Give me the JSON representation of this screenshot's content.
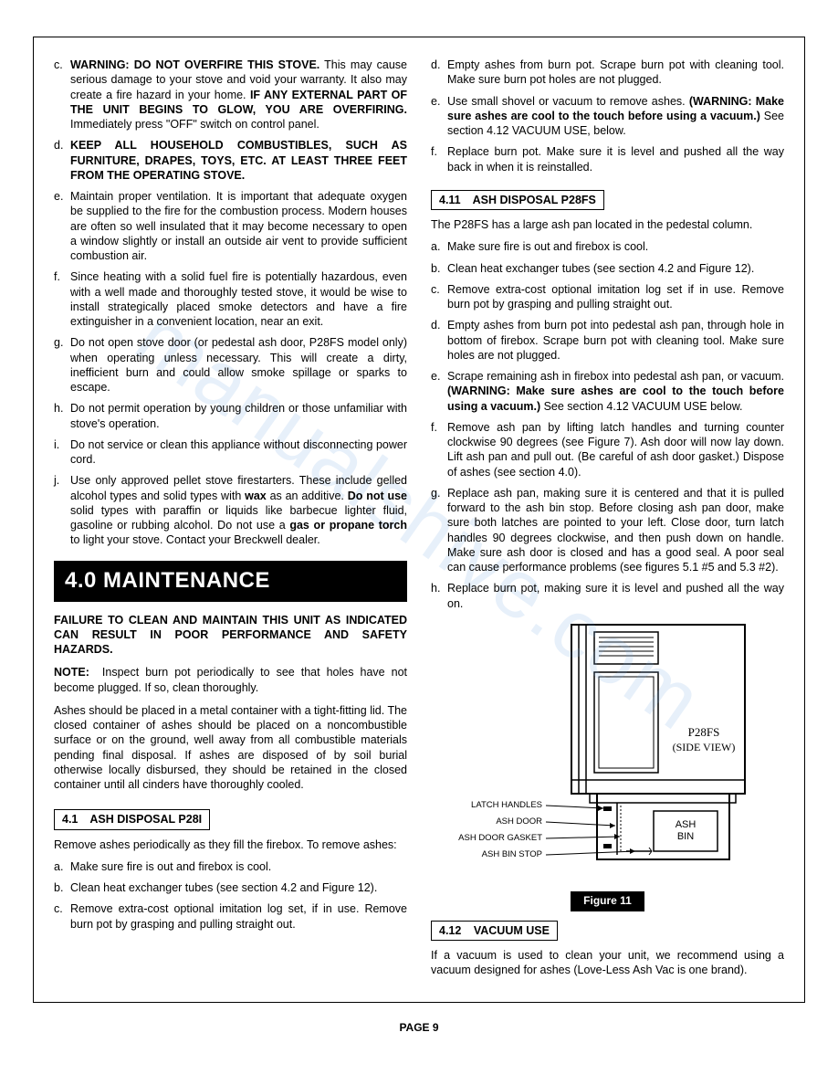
{
  "left": {
    "warnings": [
      {
        "letter": "c",
        "html": "<span class='bold'>WARNING: DO NOT OVERFIRE THIS STOVE.</span> This may cause serious damage to your stove and void your warranty. It also may create a fire hazard in your home. <span class='bold'>IF ANY EXTERNAL PART OF THE UNIT BEGINS TO GLOW, YOU ARE OVERFIRING.</span> Immediately press \"OFF\" switch on control panel."
      },
      {
        "letter": "d",
        "html": "<span class='bold'>KEEP ALL HOUSEHOLD COMBUSTIBLES, SUCH AS FURNITURE, DRAPES, TOYS, ETC. AT LEAST THREE FEET FROM THE OPERATING STOVE.</span>"
      },
      {
        "letter": "e",
        "html": "Maintain proper ventilation. It is important that adequate oxygen be supplied to the fire for the combustion process. Modern houses are often so well insulated that it may become necessary to open a window slightly or install an outside air vent to provide sufficient combustion air."
      },
      {
        "letter": "f",
        "html": "Since heating with a solid fuel fire is potentially hazardous, even with a well made and thoroughly tested stove, it would be wise to install strategically placed smoke detectors and have a fire extinguisher in a convenient location, near an exit."
      },
      {
        "letter": "g",
        "html": "Do not open stove door (or pedestal ash door, P28FS model only) when operating unless necessary. This will create a dirty, inefficient burn and could allow smoke spillage or sparks to escape."
      },
      {
        "letter": "h",
        "html": "Do not permit operation by young children or those unfamiliar with stove's operation."
      },
      {
        "letter": "i",
        "html": "Do not service or clean this appliance without disconnecting power cord."
      },
      {
        "letter": "j",
        "html": "Use only approved pellet stove firestarters. These include gelled alcohol types and solid types with <span class='bold'>wax</span> as an additive. <span class='bold'>Do not use</span> solid types with paraffin or liquids like barbecue lighter fluid, gasoline or rubbing alcohol. Do not use a <span class='bold'>gas or propane torch</span> to light your stove. Contact your Breckwell dealer."
      }
    ],
    "banner": "4.0  MAINTENANCE",
    "failure": "FAILURE TO CLEAN AND MAINTAIN THIS UNIT AS INDICATED CAN RESULT IN POOR PERFORMANCE AND SAFETY HAZARDS.",
    "note": "<span class='bold'>NOTE:</span>&nbsp;&nbsp;Inspect burn pot periodically to see that holes have not become plugged. If so, clean thoroughly.",
    "ashes_para": "Ashes should be placed in a metal container with a tight-fitting lid. The closed container of ashes should be placed on a noncombustible surface or on the ground, well away from all combustible materials pending final disposal. If ashes are disposed of by soil burial otherwise locally disbursed, they should be retained in the closed container until all cinders have thoroughly cooled.",
    "sub41_num": "4.1",
    "sub41_title": "ASH DISPOSAL P28I",
    "sub41_intro": "Remove ashes periodically as they fill the firebox. To remove ashes:",
    "sub41_items": [
      {
        "letter": "a",
        "html": "Make sure fire is out and firebox is cool."
      },
      {
        "letter": "b",
        "html": "Clean heat exchanger tubes (see section 4.2 and Figure 12)."
      },
      {
        "letter": "c",
        "html": "Remove extra-cost optional imitation log set, if in use. Remove burn pot by grasping and pulling straight out."
      }
    ]
  },
  "right": {
    "top_items": [
      {
        "letter": "d",
        "html": "Empty ashes from burn pot. Scrape burn pot with cleaning tool. Make sure burn pot holes are not plugged."
      },
      {
        "letter": "e",
        "html": "Use small shovel or vacuum to remove ashes. <span class='bold'>(WARNING: Make sure ashes are cool to the touch before using a vacuum.)</span> See section 4.12 VACUUM USE, below."
      },
      {
        "letter": "f",
        "html": "Replace burn pot. Make sure it is level and pushed all the way back in when it is reinstalled."
      }
    ],
    "sub411_num": "4.11",
    "sub411_title": "ASH DISPOSAL P28FS",
    "sub411_intro": "The P28FS has a large ash pan located in the pedestal column.",
    "sub411_items": [
      {
        "letter": "a",
        "html": "Make sure fire is out and firebox is cool."
      },
      {
        "letter": "b",
        "html": "Clean heat exchanger tubes (see section 4.2 and Figure 12)."
      },
      {
        "letter": "c",
        "html": "Remove extra-cost optional imitation log set if in use. Remove burn pot by grasping and pulling straight out."
      },
      {
        "letter": "d",
        "html": "Empty ashes from burn pot into pedestal ash pan, through hole in bottom of firebox. Scrape burn pot with cleaning tool. Make sure holes are not plugged."
      },
      {
        "letter": "e",
        "html": "Scrape remaining ash in firebox into pedestal ash pan, or vacuum. <span class='bold'>(WARNING: Make sure ashes are cool to the touch before using a vacuum.)</span> See section 4.12 VACUUM USE below."
      },
      {
        "letter": "f",
        "html": "Remove ash pan by lifting latch handles and turning counter clockwise 90 degrees (see Figure 7). Ash door will now lay down. Lift ash pan and pull out. (Be careful of ash door gasket.) Dispose of ashes (see section 4.0)."
      },
      {
        "letter": "g",
        "html": "Replace ash pan, making sure it is centered and that it is pulled forward to the ash bin stop. Before closing ash pan door, make sure both latches are pointed to your left. Close door, turn latch handles 90 degrees clockwise, and then push down on handle. Make sure ash door is closed and has a good seal. A poor seal can cause performance problems (see figures 5.1 #5 and 5.3 #2)."
      },
      {
        "letter": "h",
        "html": "Replace burn pot, making sure it is level and pushed all the way on."
      }
    ],
    "figure": {
      "label": "Figure 11",
      "model": "P28FS",
      "view": "(SIDE VIEW)",
      "callouts": {
        "latch": "LATCH HANDLES",
        "door": "ASH DOOR",
        "gasket": "ASH DOOR GASKET",
        "stop": "ASH BIN STOP",
        "bin": "ASH\nBIN"
      }
    },
    "sub412_num": "4.12",
    "sub412_title": "VACUUM USE",
    "sub412_text": "If a vacuum is used to clean your unit, we recommend using a vacuum designed for ashes (Love-Less Ash Vac is one brand)."
  },
  "page_number": "PAGE 9",
  "watermark": "manualshive.com"
}
